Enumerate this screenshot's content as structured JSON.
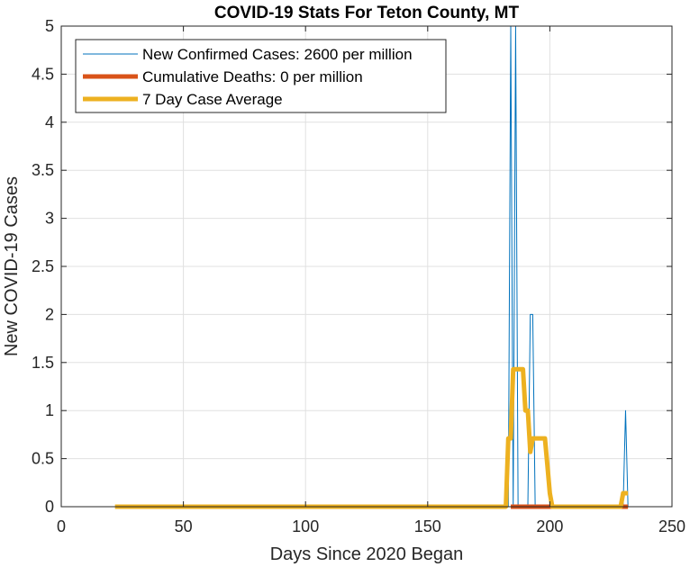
{
  "chart_data": {
    "type": "line",
    "title": "COVID-19 Stats For Teton County, MT",
    "xlabel": "Days Since 2020 Began",
    "ylabel": "New COVID-19 Cases",
    "xlim": [
      0,
      250
    ],
    "ylim": [
      0,
      5
    ],
    "xticks": [
      0,
      50,
      100,
      150,
      200,
      250
    ],
    "yticks": [
      0,
      0.5,
      1,
      1.5,
      2,
      2.5,
      3,
      3.5,
      4,
      4.5,
      5
    ],
    "xtick_labels": [
      "0",
      "50",
      "100",
      "150",
      "200",
      "250"
    ],
    "ytick_labels": [
      "0",
      "0.5",
      "1",
      "1.5",
      "2",
      "2.5",
      "3",
      "3.5",
      "4",
      "4.5",
      "5"
    ],
    "grid": true,
    "legend_location": "top-left",
    "series": [
      {
        "name": "New Confirmed Cases: 2600 per million",
        "color": "#0072BD",
        "x": [
          22,
          182,
          183,
          184,
          185,
          186,
          187,
          188,
          189,
          190,
          191,
          192,
          193,
          194,
          195,
          196,
          197,
          198,
          199,
          200,
          229,
          230,
          231,
          232
        ],
        "y": [
          0,
          0,
          0,
          5,
          0,
          5,
          0,
          0,
          0,
          0,
          0,
          2,
          2,
          0,
          0,
          0,
          0,
          0,
          0,
          0,
          0,
          0,
          1,
          0
        ]
      },
      {
        "name": "Cumulative Deaths: 0 per million",
        "color": "#D95319",
        "x": [
          184,
          232
        ],
        "y": [
          0,
          0
        ]
      },
      {
        "name": "7 Day Case Average",
        "color": "#EDB120",
        "x": [
          22,
          182,
          183,
          184,
          185,
          186,
          187,
          188,
          189,
          190,
          191,
          192,
          193,
          194,
          195,
          196,
          197,
          198,
          199,
          200,
          201,
          229,
          230,
          231,
          232
        ],
        "y": [
          0,
          0,
          0.71,
          0.71,
          1.43,
          1.43,
          1.43,
          1.43,
          1.43,
          1.0,
          1.0,
          0.57,
          0.71,
          0.71,
          0.71,
          0.71,
          0.71,
          0.71,
          0.43,
          0.14,
          0,
          0,
          0.14,
          0.14,
          0.14
        ]
      }
    ]
  }
}
